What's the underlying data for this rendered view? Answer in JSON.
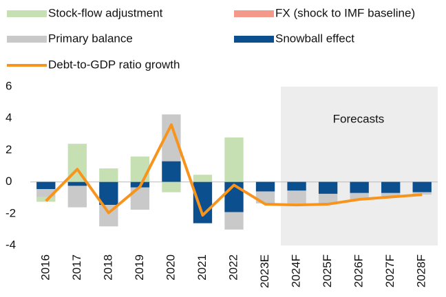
{
  "chart_data": {
    "type": "bar",
    "categories": [
      "2016",
      "2017",
      "2018",
      "2019",
      "2020",
      "2021",
      "2022",
      "2023E",
      "2024F",
      "2025F",
      "2026F",
      "2027F",
      "2028F"
    ],
    "series": [
      {
        "name": "Stock-flow adjustment",
        "color": "#c6e0b4",
        "values": [
          -0.3,
          2.4,
          0.85,
          1.6,
          -0.65,
          0.45,
          2.8,
          0,
          0,
          0,
          0,
          0,
          0
        ]
      },
      {
        "name": "FX (shock to IMF baseline)",
        "color": "#f4998a",
        "values": [
          0,
          0,
          0,
          0,
          0,
          0,
          0,
          0,
          0,
          0,
          0,
          0,
          0
        ]
      },
      {
        "name": "Primary balance",
        "color": "#c9c9c9",
        "values": [
          -0.5,
          -1.35,
          -1.35,
          -1.4,
          2.95,
          0,
          -1.1,
          -0.75,
          -0.9,
          -0.6,
          -0.4,
          -0.25,
          -0.15
        ]
      },
      {
        "name": "Snowball effect",
        "color": "#0b4f8f",
        "values": [
          -0.45,
          -0.25,
          -1.45,
          -0.35,
          1.3,
          -2.6,
          -1.9,
          -0.6,
          -0.55,
          -0.75,
          -0.7,
          -0.7,
          -0.65
        ]
      },
      {
        "name": "Debt-to-GDP ratio growth",
        "type": "line",
        "color": "#f7941d",
        "values": [
          -1.2,
          0.8,
          -1.95,
          -0.3,
          3.6,
          -2.1,
          -0.2,
          -1.4,
          -1.45,
          -1.4,
          -1.1,
          -0.95,
          -0.8
        ]
      }
    ],
    "annotation": "Forecasts",
    "ylim": [
      -4,
      6
    ],
    "yticks": [
      -4,
      -2,
      0,
      2,
      4,
      6
    ]
  }
}
